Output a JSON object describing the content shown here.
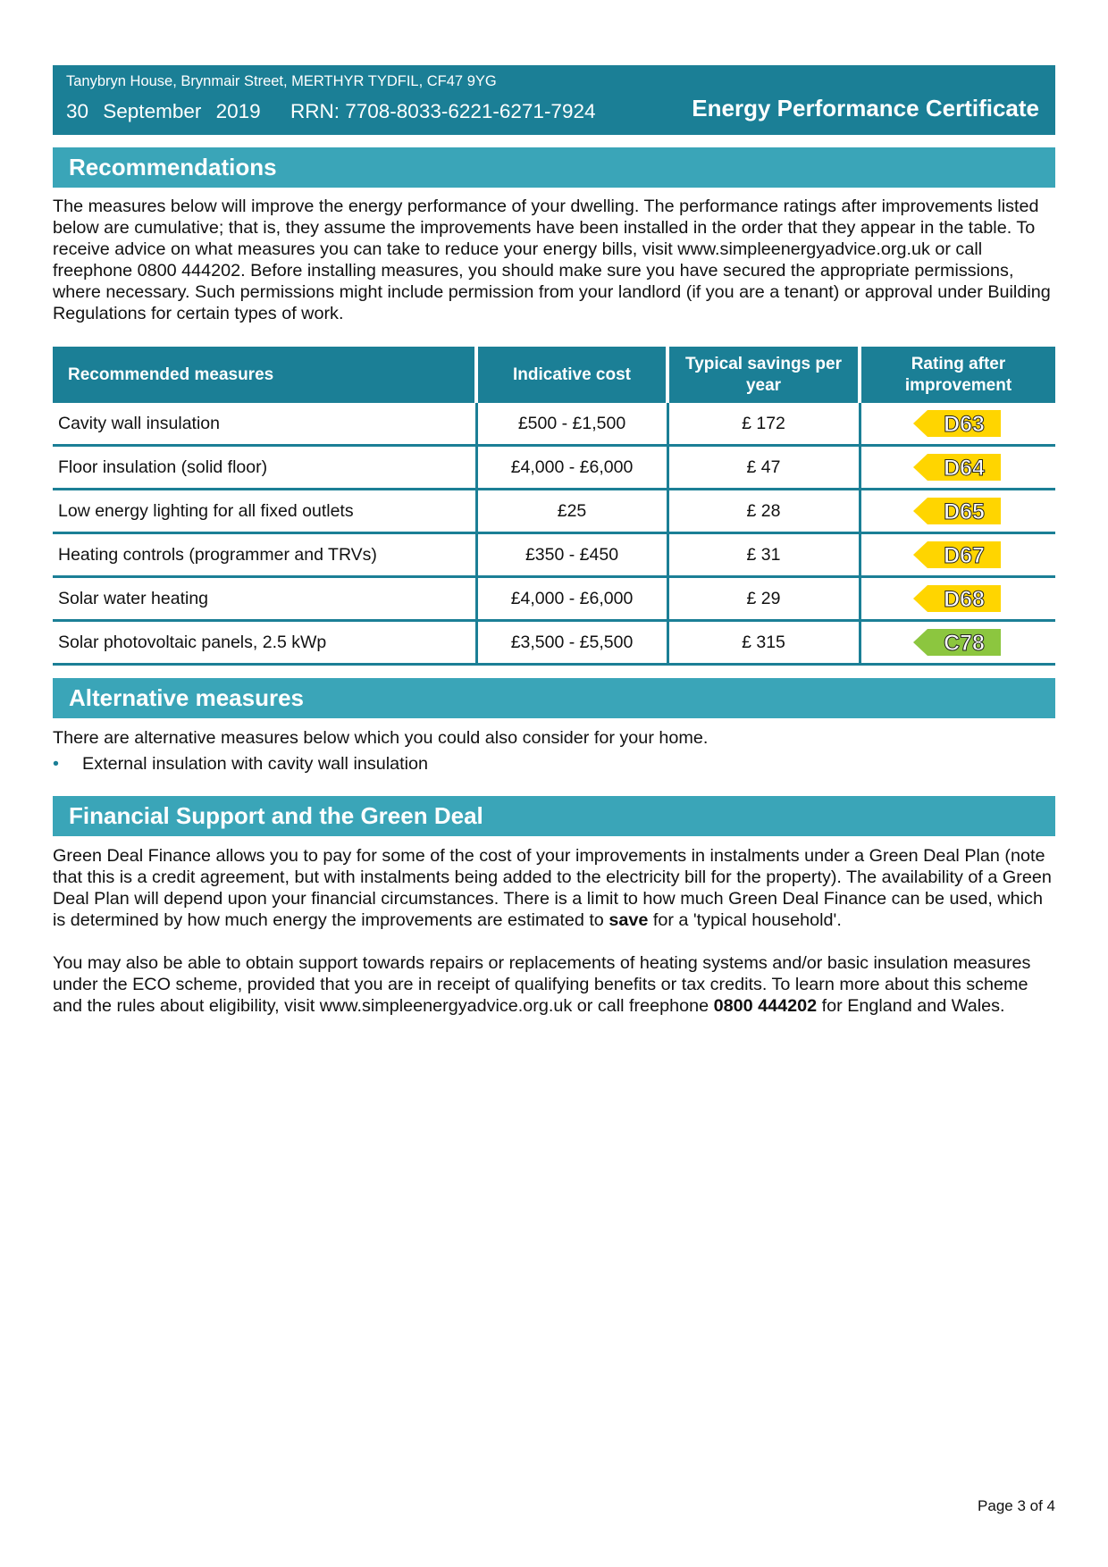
{
  "header": {
    "address": "Tanybryn House, Brynmair Street, MERTHYR TYDFIL, CF47 9YG",
    "date": "30 September 2019",
    "rrn": "RRN: 7708-8033-6221-6271-7924",
    "title": "Energy Performance Certificate"
  },
  "recommendations": {
    "heading": "Recommendations",
    "intro": "The measures below will improve the energy performance of your dwelling. The performance ratings after improvements listed below are cumulative; that is, they assume the improvements have been installed in the order that they appear in the table. To receive advice on what measures you can take to reduce your energy bills, visit www.simpleenergyadvice.org.uk or call freephone 0800 444202. Before installing measures, you should make sure you have secured the appropriate permissions, where necessary. Such permissions might include permission from your landlord (if you are a tenant) or approval under Building Regulations for certain types of work.",
    "table": {
      "columns": [
        "Recommended measures",
        "Indicative cost",
        "Typical savings per year",
        "Rating after improvement"
      ],
      "rows": [
        {
          "measure": "Cavity wall insulation",
          "cost": "£500 - £1,500",
          "savings": "£ 172",
          "rating": "D63",
          "color": "#ffd500"
        },
        {
          "measure": "Floor insulation (solid floor)",
          "cost": "£4,000 - £6,000",
          "savings": "£ 47",
          "rating": "D64",
          "color": "#ffd500"
        },
        {
          "measure": "Low energy lighting for all fixed outlets",
          "cost": "£25",
          "savings": "£ 28",
          "rating": "D65",
          "color": "#ffd500"
        },
        {
          "measure": "Heating controls (programmer and TRVs)",
          "cost": "£350 - £450",
          "savings": "£ 31",
          "rating": "D67",
          "color": "#ffd500"
        },
        {
          "measure": "Solar water heating",
          "cost": "£4,000 - £6,000",
          "savings": "£ 29",
          "rating": "D68",
          "color": "#ffd500"
        },
        {
          "measure": "Solar photovoltaic panels, 2.5 kWp",
          "cost": "£3,500 - £5,500",
          "savings": "£ 315",
          "rating": "C78",
          "color": "#8cc63f"
        }
      ]
    }
  },
  "alternative": {
    "heading": "Alternative measures",
    "intro": "There are alternative measures below which you could also consider for your home.",
    "items": [
      "External insulation with cavity wall insulation"
    ]
  },
  "financial": {
    "heading": "Financial Support and the Green Deal",
    "paragraphs": [
      [
        {
          "text": "Green Deal Finance allows you to pay for some of the cost of your improvements in instalments under a Green Deal Plan (note that this is a credit agreement, but with instalments being added to the electricity bill for the property). The availability of a Green Deal Plan will depend upon your financial circumstances. There is a limit to how much Green Deal Finance can be used, which is determined by how much energy the improvements are estimated to "
        },
        {
          "text": "save",
          "bold": true
        },
        {
          "text": " for a 'typical household'."
        }
      ],
      [
        {
          "text": "You may also be able to obtain support towards repairs or replacements of heating systems and/or basic insulation measures under the ECO scheme, provided that you are in receipt of qualifying benefits or tax credits. To learn more about this scheme and the rules about eligibility, visit www.simpleenergyadvice.org.uk or call freephone "
        },
        {
          "text": "0800 444202",
          "bold": true
        },
        {
          "text": " for England and Wales."
        }
      ]
    ]
  },
  "footer": {
    "page": "Page 3 of 4"
  }
}
